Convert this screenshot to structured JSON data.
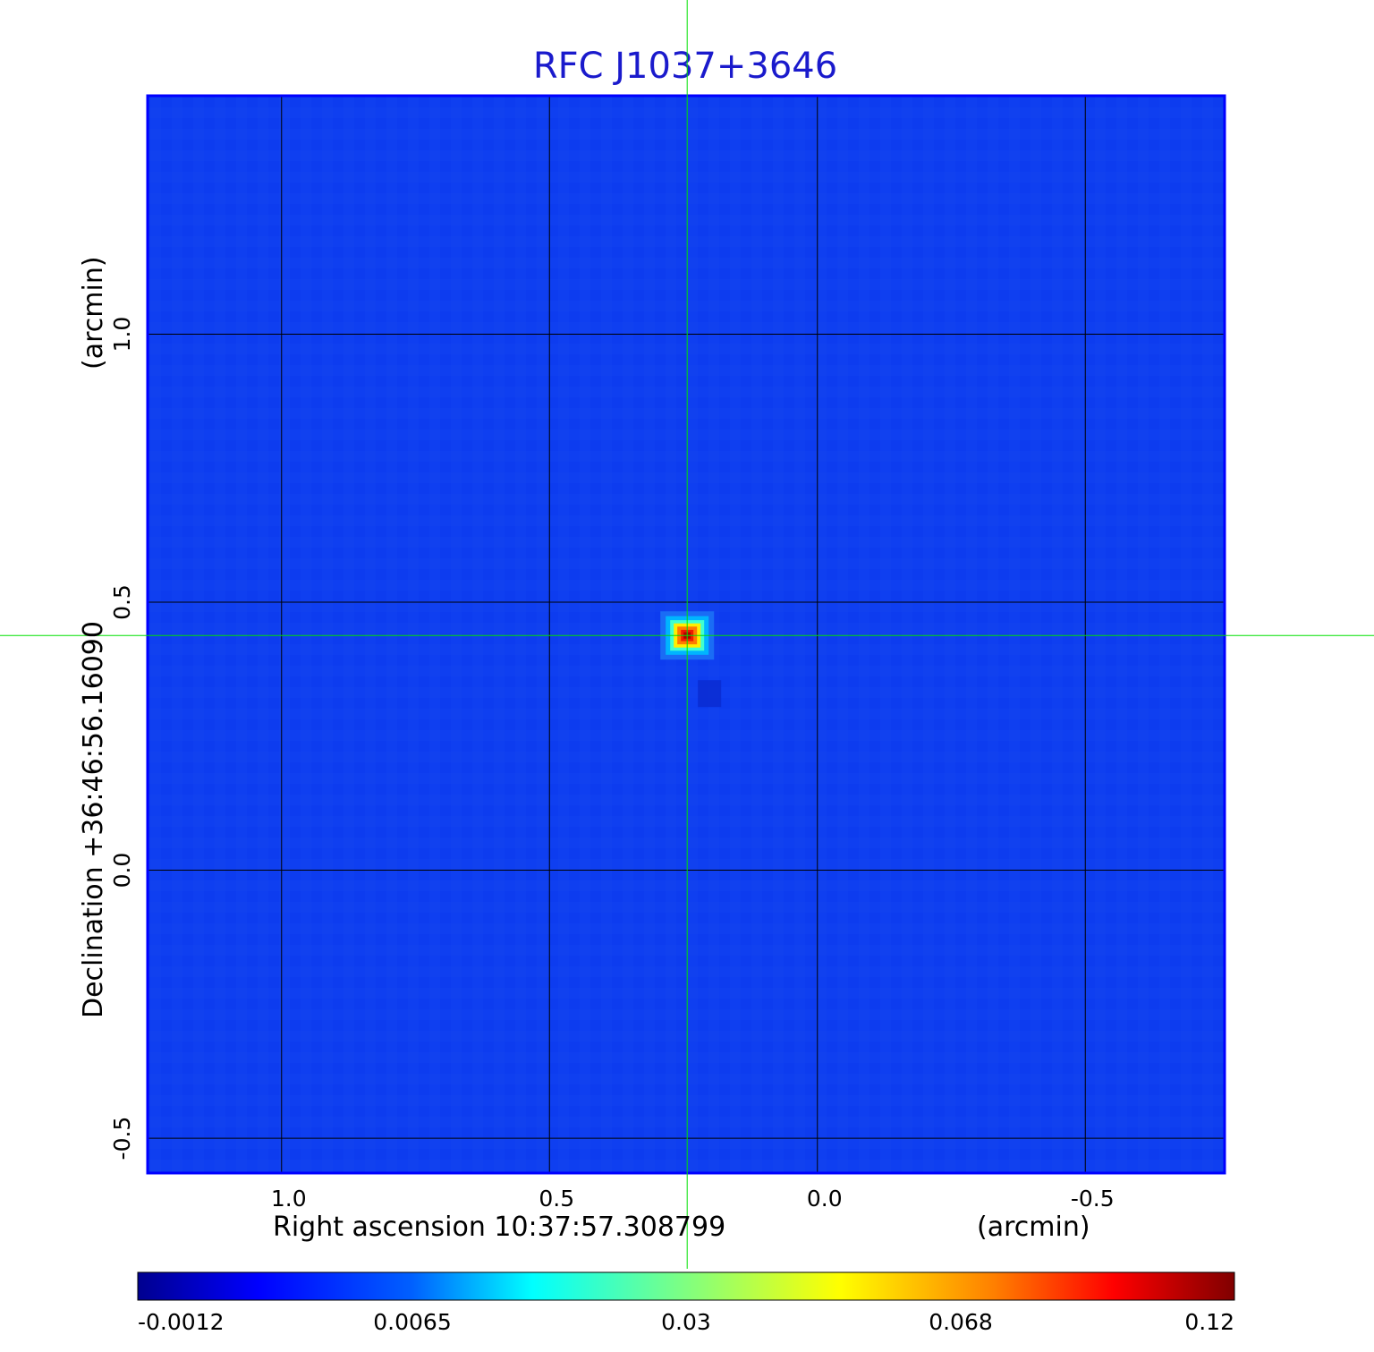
{
  "chart_data": {
    "type": "heatmap",
    "title": "RFC J1037+3646",
    "xlabel": "Right ascension  10:37:57.308799",
    "xunit": "(arcmin)",
    "ylabel": "Declination  +36:46:56.16090",
    "yunit": "(arcmin)",
    "x_ticks": [
      1.0,
      0.5,
      0.0,
      -0.5
    ],
    "x_tick_labels": [
      "1.0",
      "0.5",
      "0.0",
      "-0.5"
    ],
    "y_ticks": [
      1.0,
      0.5,
      0.0,
      -0.5
    ],
    "y_tick_labels": [
      "1.0",
      "0.5",
      "0.0",
      "-0.5"
    ],
    "xlim": [
      1.25,
      -0.76
    ],
    "ylim": [
      -0.565,
      1.445
    ],
    "grid": true,
    "source": {
      "x": 0.243,
      "y": 0.438,
      "peak": 0.12
    },
    "crosshair": {
      "x": 0.243,
      "y": 0.438
    },
    "colorbar": {
      "ticks": [
        -0.0012,
        0.0065,
        0.03,
        0.068,
        0.12
      ],
      "tick_labels": [
        "-0.0012",
        "0.0065",
        "0.03",
        "0.068",
        "0.12"
      ],
      "min": -0.0012,
      "max": 0.12
    }
  },
  "colors": {
    "title": "#1a1acc",
    "background_map": "#0f3ff0",
    "grid": "#000000",
    "crosshair": "#00e000",
    "frame": "#0000ff"
  }
}
